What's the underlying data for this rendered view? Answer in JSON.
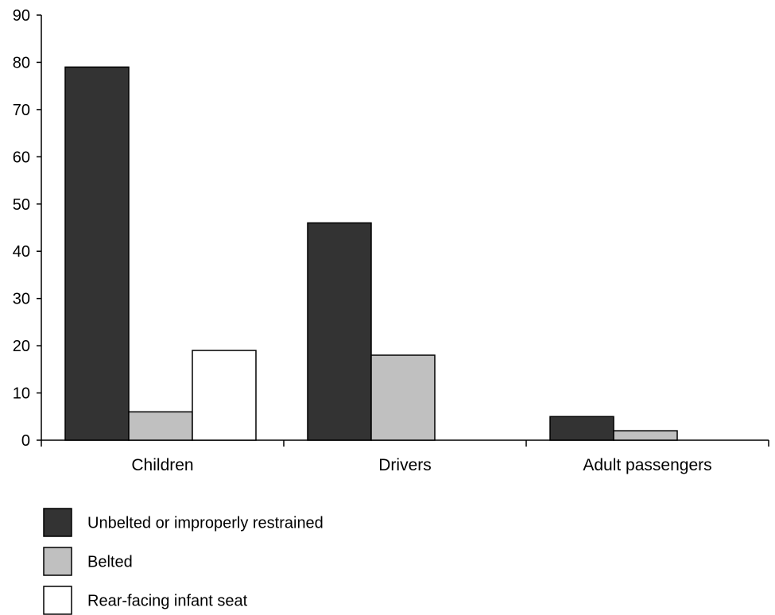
{
  "chart_data": {
    "type": "bar",
    "title": "",
    "xlabel": "",
    "ylabel": "",
    "ylim": [
      0,
      90
    ],
    "yticks": [
      0,
      10,
      20,
      30,
      40,
      50,
      60,
      70,
      80,
      90
    ],
    "categories": [
      "Children",
      "Drivers",
      "Adult passengers"
    ],
    "series": [
      {
        "name": "Unbelted or improperly restrained",
        "color": "#333333",
        "values": [
          79,
          46,
          5
        ]
      },
      {
        "name": "Belted",
        "color": "#c0c0c0",
        "values": [
          6,
          18,
          2
        ]
      },
      {
        "name": "Rear-facing infant seat",
        "color": "#ffffff",
        "values": [
          19,
          null,
          null
        ]
      }
    ],
    "legend_position": "bottom-left",
    "grid": false
  }
}
